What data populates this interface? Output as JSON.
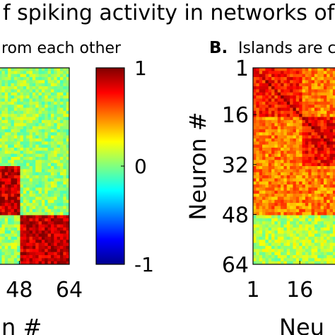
{
  "figure": {
    "title": "f spiking activity in networks of si",
    "panel_a_subtitle": "rom each other",
    "panel_b_letter": "B.",
    "panel_b_subtitle": "Islands are co"
  },
  "chart_data": [
    {
      "type": "heatmap",
      "panel": "A",
      "x_tick_labels": [
        "48",
        "64"
      ],
      "x_ticks": [
        48,
        64
      ],
      "xlabel": "n #",
      "ylabel": "",
      "n_neurons": 64,
      "xlim": [
        1,
        64
      ],
      "ylim": [
        1,
        64
      ],
      "colormap": "jet",
      "value_range": [
        -1,
        1
      ],
      "blocks": [
        {
          "from": 1,
          "to": 32,
          "mean_correlation": 0.3
        },
        {
          "from": 33,
          "to": 48,
          "mean_correlation": 0.85
        },
        {
          "from": 49,
          "to": 64,
          "mean_correlation": 0.85
        }
      ],
      "off_block_correlation": 0.05
    },
    {
      "type": "colorbar",
      "range": [
        -1,
        1
      ],
      "ticks": [
        1,
        0,
        -1
      ],
      "tick_labels": [
        "1",
        "0",
        "-1"
      ]
    },
    {
      "type": "heatmap",
      "panel": "B",
      "y_tick_labels": [
        "1",
        "16",
        "32",
        "48",
        "64"
      ],
      "y_ticks": [
        1,
        16,
        32,
        48,
        64
      ],
      "x_tick_labels": [
        "1",
        "16"
      ],
      "x_ticks": [
        1,
        16
      ],
      "ylabel": "Neuron #",
      "xlabel": "Neu",
      "n_neurons": 64,
      "xlim": [
        1,
        64
      ],
      "ylim": [
        1,
        64
      ],
      "colormap": "jet",
      "value_range": [
        -1,
        1
      ],
      "blocks": [
        {
          "from": 1,
          "to": 16,
          "mean_correlation": 0.7
        },
        {
          "from": 17,
          "to": 32,
          "mean_correlation": 0.75
        },
        {
          "from": 33,
          "to": 48,
          "mean_correlation": 0.6
        }
      ],
      "connected_blocks_correlation": 0.5,
      "off_block_correlation": 0.1
    }
  ]
}
